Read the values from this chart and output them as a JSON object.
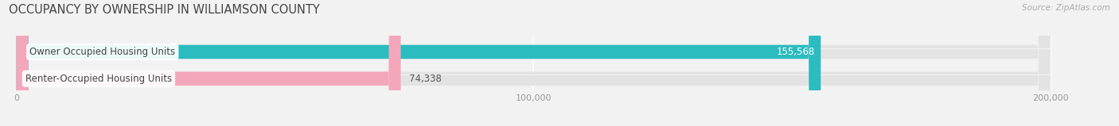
{
  "title": "OCCUPANCY BY OWNERSHIP IN WILLIAMSON COUNTY",
  "source": "Source: ZipAtlas.com",
  "categories": [
    "Owner Occupied Housing Units",
    "Renter-Occupied Housing Units"
  ],
  "values": [
    155568,
    74338
  ],
  "bar_colors": [
    "#2bbcbf",
    "#f4a7bb"
  ],
  "value_labels": [
    "155,568",
    "74,338"
  ],
  "xlim": [
    0,
    210000
  ],
  "data_max": 200000,
  "xticks": [
    0,
    100000,
    200000
  ],
  "xtick_labels": [
    "0",
    "100,000",
    "200,000"
  ],
  "background_color": "#f2f2f2",
  "bar_background_color": "#e3e3e3",
  "title_fontsize": 10.5,
  "label_fontsize": 8.5,
  "value_fontsize": 8.5,
  "bar_height": 0.52,
  "bar_gap": 0.38
}
